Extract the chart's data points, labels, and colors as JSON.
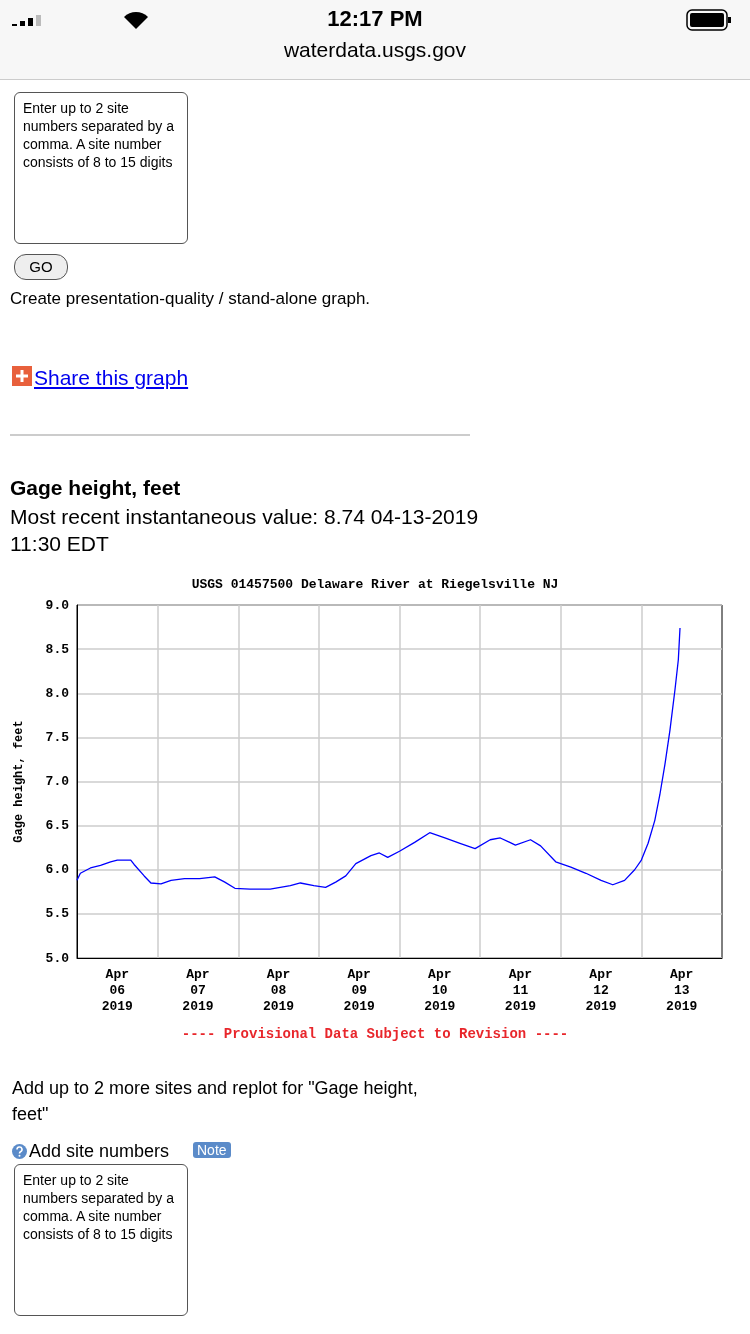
{
  "chart_data": {
    "type": "line",
    "title": "USGS 01457500 Delaware River at Riegelsville NJ",
    "subtitle": "Most recent instantaneous value: 8.74 04-13-2019   11:30 EDT",
    "ylabel": "Gage height, feet",
    "annotations": [
      "12:17 PM",
      "waterdata.usgs.gov",
      "Enter up to 2 site numbers separated by a comma. A site number consists of 8 to 15 digits",
      "GO",
      "Create presentation-quality / stand-alone graph.",
      "Share this graph",
      "Gage height, feet",
      "---- Provisional Data Subject to Revision ----",
      "Add up to 2 more sites and replot for \"Gage height, feet\"",
      "Add site numbers",
      "Note",
      "Enter up to 2 site numbers separated by a comma. A site number consists of 8 to 15 digits"
    ],
    "series": [
      {
        "color": "#0000ff",
        "x": [
          "2019-04-06T00:00",
          "2019-04-06T01:00",
          "2019-04-06T04:00",
          "2019-04-06T07:00",
          "2019-04-06T10:00",
          "2019-04-06T12:00",
          "2019-04-06T16:00",
          "2019-04-06T17:00",
          "2019-04-06T20:00",
          "2019-04-06T22:00",
          "2019-04-07T01:00",
          "2019-04-07T04:00",
          "2019-04-07T08:00",
          "2019-04-07T12:30",
          "2019-04-07T17:00",
          "2019-04-07T20:00",
          "2019-04-07T23:00",
          "2019-04-08T03:30",
          "2019-04-08T09:30",
          "2019-04-08T15:30",
          "2019-04-08T18:30",
          "2019-04-08T22:30",
          "2019-04-09T02:00",
          "2019-04-09T05:00",
          "2019-04-09T08:00",
          "2019-04-09T11:00",
          "2019-04-09T15:30",
          "2019-04-09T18:00",
          "2019-04-09T20:30",
          "2019-04-10T00:00",
          "2019-04-10T04:30",
          "2019-04-10T09:00",
          "2019-04-10T13:30",
          "2019-04-10T18:00",
          "2019-04-10T22:30",
          "2019-04-11T03:00",
          "2019-04-11T06:00",
          "2019-04-11T10:30",
          "2019-04-11T15:00",
          "2019-04-11T18:00",
          "2019-04-11T22:30",
          "2019-04-12T03:00",
          "2019-04-12T07:30",
          "2019-04-12T12:00",
          "2019-04-12T15:30",
          "2019-04-12T19:00",
          "2019-04-12T22:00",
          "2019-04-13T00:00",
          "2019-04-13T02:00",
          "2019-04-13T04:00",
          "2019-04-13T05:30",
          "2019-04-13T07:00",
          "2019-04-13T08:30",
          "2019-04-13T10:00",
          "2019-04-13T11:00",
          "2019-04-13T11:30"
        ],
        "values": [
          5.88,
          5.96,
          6.02,
          6.05,
          6.09,
          6.11,
          6.11,
          6.06,
          5.93,
          5.85,
          5.84,
          5.88,
          5.9,
          5.9,
          5.92,
          5.86,
          5.79,
          5.78,
          5.78,
          5.82,
          5.85,
          5.82,
          5.8,
          5.86,
          5.93,
          6.07,
          6.16,
          6.19,
          6.14,
          6.21,
          6.31,
          6.42,
          6.36,
          6.3,
          6.24,
          6.34,
          6.36,
          6.28,
          6.34,
          6.27,
          6.09,
          6.03,
          5.96,
          5.88,
          5.83,
          5.88,
          6.0,
          6.11,
          6.3,
          6.56,
          6.85,
          7.19,
          7.58,
          8.04,
          8.38,
          8.74
        ]
      }
    ],
    "xlim": [
      "2019-04-06",
      "2019-04-14"
    ],
    "xticks": [
      {
        "value": "2019-04-06T12:00",
        "label": "Apr\n06\n2019"
      },
      {
        "value": "2019-04-07T00:00",
        "label": null
      },
      {
        "value": "2019-04-07T12:00",
        "label": "Apr\n07\n2019"
      },
      {
        "value": "2019-04-08T00:00",
        "label": null
      },
      {
        "value": "2019-04-08T12:00",
        "label": "Apr\n08\n2019"
      },
      {
        "value": "2019-04-09T00:00",
        "label": null
      },
      {
        "value": "2019-04-09T12:00",
        "label": "Apr\n09\n2019"
      },
      {
        "value": "2019-04-10T00:00",
        "label": null
      },
      {
        "value": "2019-04-10T12:00",
        "label": "Apr\n10\n2019"
      },
      {
        "value": "2019-04-11T00:00",
        "label": null
      },
      {
        "value": "2019-04-11T12:00",
        "label": "Apr\n11\n2019"
      },
      {
        "value": "2019-04-12T00:00",
        "label": null
      },
      {
        "value": "2019-04-12T12:00",
        "label": "Apr\n12\n2019"
      },
      {
        "value": "2019-04-13T00:00",
        "label": null
      },
      {
        "value": "2019-04-13T12:00",
        "label": "Apr\n13\n2019"
      }
    ],
    "ylim": [
      5,
      9
    ],
    "yticks": [
      {
        "value": 5,
        "label": "5.0"
      },
      {
        "value": 5.5,
        "label": "5.5"
      },
      {
        "value": 6,
        "label": "6.0"
      },
      {
        "value": 6.5,
        "label": "6.5"
      },
      {
        "value": 7,
        "label": "7.0"
      },
      {
        "value": 7.5,
        "label": "7.5"
      },
      {
        "value": 8,
        "label": "8.0"
      },
      {
        "value": 8.5,
        "label": "8.5"
      },
      {
        "value": 9,
        "label": "9.0"
      }
    ],
    "grid": true,
    "marker": "none",
    "line_style": "solid"
  }
}
